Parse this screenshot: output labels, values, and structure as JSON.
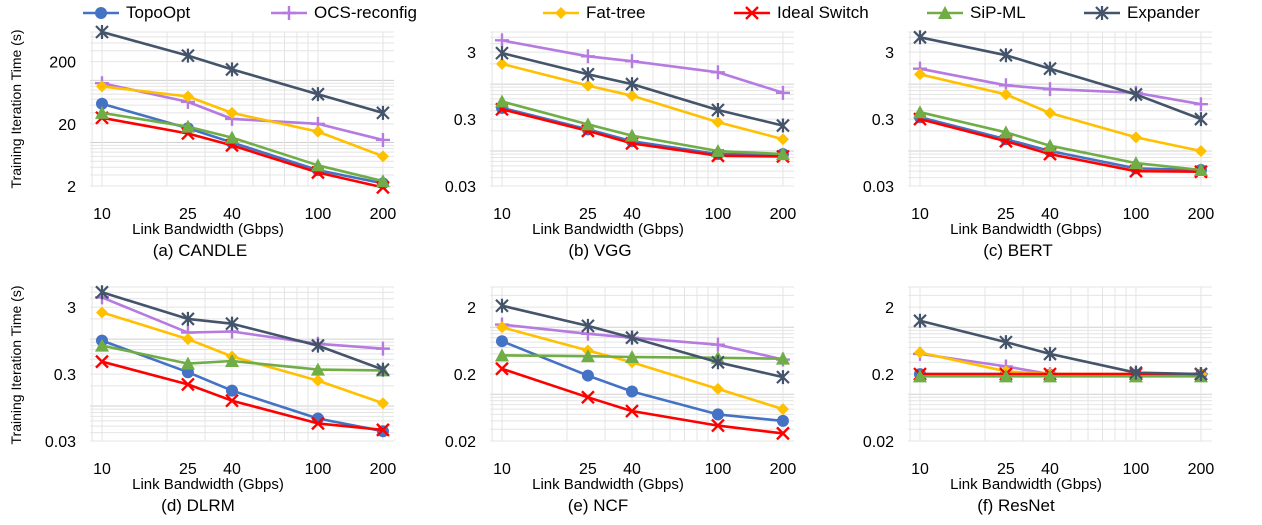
{
  "series_styles": [
    {
      "name": "TopoOpt",
      "color": "#4472C4",
      "marker": "circle"
    },
    {
      "name": "OCS-reconfig",
      "color": "#B57BE0",
      "marker": "plus"
    },
    {
      "name": "Fat-tree",
      "color": "#FFC000",
      "marker": "diamond"
    },
    {
      "name": "Ideal Switch",
      "color": "#FF0000",
      "marker": "x"
    },
    {
      "name": "SiP-ML",
      "color": "#70AD47",
      "marker": "triangle"
    },
    {
      "name": "Expander",
      "color": "#44546A",
      "marker": "asterisk"
    }
  ],
  "ylabel": "Training Iteration Time (s)",
  "chart_data": [
    {
      "type": "line",
      "log_y": true,
      "log_x": true,
      "caption": "(a) CANDLE",
      "xlabel": "Link Bandwidth (Gbps)",
      "x": [
        10,
        25,
        40,
        100,
        200
      ],
      "x_tick_labels": [
        "10",
        "25",
        "40",
        "100",
        "200"
      ],
      "ylim": [
        2,
        600
      ],
      "y_ticks": [
        2,
        20,
        200
      ],
      "y_tick_labels": [
        "2",
        "20",
        "200"
      ],
      "series": [
        {
          "name": "TopoOpt",
          "values": [
            42,
            17,
            10,
            3.6,
            2.2
          ]
        },
        {
          "name": "OCS-reconfig",
          "values": [
            90,
            45,
            24,
            20,
            11
          ]
        },
        {
          "name": "Fat-tree",
          "values": [
            80,
            55,
            30,
            15,
            6
          ]
        },
        {
          "name": "Ideal Switch",
          "values": [
            25,
            14,
            9,
            3.3,
            1.9
          ]
        },
        {
          "name": "SiP-ML",
          "values": [
            30,
            18,
            12,
            4.3,
            2.4
          ]
        },
        {
          "name": "Expander",
          "values": [
            600,
            250,
            150,
            60,
            30
          ]
        }
      ]
    },
    {
      "type": "line",
      "log_y": true,
      "log_x": true,
      "caption": "(b) VGG",
      "xlabel": "Link Bandwidth (Gbps)",
      "x": [
        10,
        25,
        40,
        100,
        200
      ],
      "x_tick_labels": [
        "10",
        "25",
        "40",
        "100",
        "200"
      ],
      "ylim": [
        0.03,
        6
      ],
      "y_ticks": [
        0.03,
        0.3,
        3
      ],
      "y_tick_labels": [
        "0.03",
        "0.3",
        "3"
      ],
      "series": [
        {
          "name": "TopoOpt",
          "values": [
            0.44,
            0.21,
            0.14,
            0.09,
            0.09
          ]
        },
        {
          "name": "OCS-reconfig",
          "values": [
            4.5,
            2.6,
            2.2,
            1.5,
            0.74
          ]
        },
        {
          "name": "Fat-tree",
          "values": [
            2.0,
            0.95,
            0.67,
            0.27,
            0.15
          ]
        },
        {
          "name": "Ideal Switch",
          "values": [
            0.42,
            0.2,
            0.13,
            0.085,
            0.083
          ]
        },
        {
          "name": "SiP-ML",
          "values": [
            0.55,
            0.25,
            0.17,
            0.1,
            0.09
          ]
        },
        {
          "name": "Expander",
          "values": [
            2.9,
            1.4,
            1.0,
            0.41,
            0.24
          ]
        }
      ]
    },
    {
      "type": "line",
      "log_y": true,
      "log_x": true,
      "caption": "(c) BERT",
      "xlabel": "Link Bandwidth (Gbps)",
      "x": [
        10,
        25,
        40,
        100,
        200
      ],
      "x_tick_labels": [
        "10",
        "25",
        "40",
        "100",
        "200"
      ],
      "ylim": [
        0.03,
        6
      ],
      "y_ticks": [
        0.03,
        0.3,
        3
      ],
      "y_tick_labels": [
        "0.03",
        "0.3",
        "3"
      ],
      "series": [
        {
          "name": "TopoOpt",
          "values": [
            0.32,
            0.15,
            0.1,
            0.055,
            0.052
          ]
        },
        {
          "name": "OCS-reconfig",
          "values": [
            1.7,
            0.96,
            0.84,
            0.74,
            0.5
          ]
        },
        {
          "name": "Fat-tree",
          "values": [
            1.4,
            0.7,
            0.37,
            0.16,
            0.1
          ]
        },
        {
          "name": "Ideal Switch",
          "values": [
            0.3,
            0.14,
            0.09,
            0.05,
            0.049
          ]
        },
        {
          "name": "SiP-ML",
          "values": [
            0.38,
            0.19,
            0.12,
            0.066,
            0.052
          ]
        },
        {
          "name": "Expander",
          "values": [
            5.0,
            2.7,
            1.7,
            0.7,
            0.3
          ]
        }
      ]
    },
    {
      "type": "line",
      "log_y": true,
      "log_x": true,
      "caption": "(d) DLRM",
      "xlabel": "Link Bandwidth (Gbps)",
      "x": [
        10,
        25,
        40,
        100,
        200
      ],
      "x_tick_labels": [
        "10",
        "25",
        "40",
        "100",
        "200"
      ],
      "ylim": [
        0.03,
        6
      ],
      "y_ticks": [
        0.03,
        0.3,
        3
      ],
      "y_tick_labels": [
        "0.03",
        "0.3",
        "3"
      ],
      "series": [
        {
          "name": "TopoOpt",
          "values": [
            0.95,
            0.32,
            0.17,
            0.065,
            0.042
          ]
        },
        {
          "name": "OCS-reconfig",
          "values": [
            4.2,
            1.25,
            1.3,
            0.85,
            0.72
          ]
        },
        {
          "name": "Fat-tree",
          "values": [
            2.5,
            1.0,
            0.55,
            0.24,
            0.11
          ]
        },
        {
          "name": "Ideal Switch",
          "values": [
            0.46,
            0.21,
            0.12,
            0.055,
            0.044
          ]
        },
        {
          "name": "SiP-ML",
          "values": [
            0.8,
            0.43,
            0.47,
            0.35,
            0.34
          ]
        },
        {
          "name": "Expander",
          "values": [
            5.0,
            2.0,
            1.7,
            0.8,
            0.35
          ]
        }
      ]
    },
    {
      "type": "line",
      "log_y": true,
      "log_x": true,
      "caption": "(e) NCF",
      "xlabel": "Link Bandwidth (Gbps)",
      "x": [
        10,
        25,
        40,
        100,
        200
      ],
      "x_tick_labels": [
        "10",
        "25",
        "40",
        "100",
        "200"
      ],
      "ylim": [
        0.02,
        4
      ],
      "y_ticks": [
        0.02,
        0.2,
        2
      ],
      "y_tick_labels": [
        "0.02",
        "0.2",
        "2"
      ],
      "series": [
        {
          "name": "TopoOpt",
          "values": [
            0.62,
            0.19,
            0.11,
            0.05,
            0.04
          ]
        },
        {
          "name": "OCS-reconfig",
          "values": [
            1.1,
            0.8,
            0.7,
            0.55,
            0.33
          ]
        },
        {
          "name": "Fat-tree",
          "values": [
            1.0,
            0.45,
            0.3,
            0.12,
            0.06
          ]
        },
        {
          "name": "Ideal Switch",
          "values": [
            0.24,
            0.09,
            0.056,
            0.034,
            0.026
          ]
        },
        {
          "name": "SiP-ML",
          "values": [
            0.38,
            0.37,
            0.36,
            0.35,
            0.34
          ]
        },
        {
          "name": "Expander",
          "values": [
            2.1,
            1.05,
            0.7,
            0.3,
            0.18
          ]
        }
      ]
    },
    {
      "type": "line",
      "log_y": true,
      "log_x": true,
      "caption": "(f) ResNet",
      "xlabel": "Link Bandwidth (Gbps)",
      "x": [
        10,
        25,
        40,
        100,
        200
      ],
      "x_tick_labels": [
        "10",
        "25",
        "40",
        "100",
        "200"
      ],
      "ylim": [
        0.02,
        4
      ],
      "y_ticks": [
        0.02,
        0.2,
        2
      ],
      "y_tick_labels": [
        "0.02",
        "0.2",
        "2"
      ],
      "series": [
        {
          "name": "TopoOpt",
          "values": [
            0.2,
            0.2,
            0.195,
            0.195,
            0.195
          ]
        },
        {
          "name": "OCS-reconfig",
          "values": [
            0.4,
            0.26,
            0.2,
            0.2,
            0.2
          ]
        },
        {
          "name": "Fat-tree",
          "values": [
            0.42,
            0.22,
            0.2,
            0.2,
            0.2
          ]
        },
        {
          "name": "Ideal Switch",
          "values": [
            0.2,
            0.2,
            0.2,
            0.2,
            0.2
          ]
        },
        {
          "name": "SiP-ML",
          "values": [
            0.185,
            0.185,
            0.185,
            0.185,
            0.185
          ]
        },
        {
          "name": "Expander",
          "values": [
            1.25,
            0.6,
            0.4,
            0.21,
            0.2
          ]
        }
      ]
    }
  ]
}
